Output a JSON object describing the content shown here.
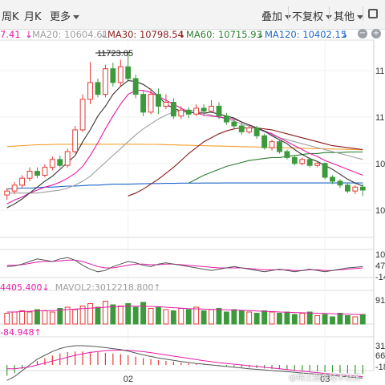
{
  "toolbar": {
    "period_week": "周K",
    "period_month": "月K",
    "more": "更多",
    "overlay": "叠加",
    "adjust": "不复权",
    "other": "其他"
  },
  "ma_legend": {
    "ma5_value": "7.41",
    "ma20_label": "MA20: 10604.61",
    "ma30_label": "MA30: 10798.54",
    "ma60_label": "MA60: 10715.93",
    "ma120_label": "MA120: 10402.15",
    "minus_icon": "minus-circle-icon",
    "plus_icon": "plus-circle-icon"
  },
  "colors": {
    "up": "#e53935",
    "down": "#3c9a3c",
    "ma5": "#333333",
    "ma10": "#e61aa8",
    "ma20": "#9e9e9e",
    "ma30": "#8b1a1a",
    "ma60": "#2e7d32",
    "ma120": "#1e66c8",
    "ma250": "#f0a030"
  },
  "chart_data": {
    "type": "candlestick",
    "high_annotation": "11723.05",
    "price_axis_ticks": [
      "11",
      "11",
      "10",
      "10"
    ],
    "x_ticks": [
      {
        "label": "02",
        "index": 16
      },
      {
        "label": "03",
        "index": 42
      }
    ],
    "ylim": [
      9850,
      11850
    ],
    "candles": [
      [
        10280,
        10320,
        10230,
        10350
      ],
      [
        10320,
        10380,
        10290,
        10410
      ],
      [
        10380,
        10450,
        10350,
        10480
      ],
      [
        10450,
        10520,
        10420,
        10560
      ],
      [
        10520,
        10480,
        10450,
        10560
      ],
      [
        10480,
        10560,
        10460,
        10590
      ],
      [
        10560,
        10640,
        10530,
        10670
      ],
      [
        10640,
        10580,
        10560,
        10680
      ],
      [
        10580,
        10720,
        10560,
        10750
      ],
      [
        10720,
        10940,
        10700,
        10980
      ],
      [
        10940,
        11250,
        10920,
        11300
      ],
      [
        11250,
        11420,
        11200,
        11630
      ],
      [
        11420,
        11300,
        11270,
        11460
      ],
      [
        11300,
        11560,
        11270,
        11600
      ],
      [
        11560,
        11420,
        11380,
        11620
      ],
      [
        11420,
        11580,
        11380,
        11650
      ],
      [
        11580,
        11460,
        11440,
        11723
      ],
      [
        11460,
        11300,
        11260,
        11500
      ],
      [
        11300,
        11120,
        11080,
        11340
      ],
      [
        11120,
        11300,
        11100,
        11360
      ],
      [
        11300,
        11180,
        11100,
        11360
      ],
      [
        11180,
        11220,
        11150,
        11300
      ],
      [
        11220,
        11080,
        11050,
        11260
      ],
      [
        11080,
        11140,
        11050,
        11180
      ],
      [
        11140,
        11100,
        11060,
        11170
      ],
      [
        11100,
        11160,
        11080,
        11200
      ],
      [
        11160,
        11130,
        11080,
        11200
      ],
      [
        11130,
        11180,
        11110,
        11240
      ],
      [
        11180,
        11080,
        11050,
        11220
      ],
      [
        11080,
        11020,
        10990,
        11110
      ],
      [
        11020,
        10980,
        10950,
        11060
      ],
      [
        10980,
        10920,
        10890,
        11010
      ],
      [
        10920,
        10960,
        10900,
        10990
      ],
      [
        10960,
        10880,
        10850,
        10980
      ],
      [
        10880,
        10760,
        10740,
        10900
      ],
      [
        10760,
        10820,
        10730,
        10840
      ],
      [
        10820,
        10720,
        10700,
        10840
      ],
      [
        10720,
        10660,
        10640,
        10740
      ],
      [
        10660,
        10600,
        10580,
        10680
      ],
      [
        10600,
        10640,
        10580,
        10660
      ],
      [
        10640,
        10580,
        10560,
        10660
      ],
      [
        10580,
        10600,
        10560,
        10620
      ],
      [
        10600,
        10460,
        10440,
        10610
      ],
      [
        10460,
        10420,
        10390,
        10480
      ],
      [
        10420,
        10380,
        10350,
        10440
      ],
      [
        10380,
        10320,
        10300,
        10400
      ],
      [
        10320,
        10360,
        10290,
        10380
      ],
      [
        10360,
        10330,
        10270,
        10390
      ]
    ],
    "ma_lines": {
      "ma5": [
        10150,
        10190,
        10240,
        10300,
        10360,
        10420,
        10470,
        10540,
        10610,
        10680,
        10820,
        10940,
        11080,
        11180,
        11300,
        11380,
        11440,
        11430,
        11400,
        11350,
        11280,
        11200,
        11160,
        11130,
        11120,
        11110,
        11110,
        11120,
        11100,
        11080,
        11060,
        11020,
        10990,
        10960,
        10930,
        10880,
        10840,
        10800,
        10740,
        10690,
        10650,
        10620,
        10580,
        10540,
        10490,
        10440,
        10400,
        10370
      ],
      "ma10": [
        10190,
        10230,
        10260,
        10300,
        10330,
        10360,
        10380,
        10410,
        10450,
        10500,
        10570,
        10680,
        10810,
        10950,
        11080,
        11200,
        11300,
        11340,
        11340,
        11320,
        11280,
        11240,
        11200,
        11160,
        11120,
        11110,
        11090,
        11080,
        11070,
        11060,
        11050,
        11020,
        10990,
        10960,
        10930,
        10900,
        10860,
        10820,
        10780,
        10740,
        10700,
        10670,
        10630,
        10600,
        10570,
        10540,
        10510,
        10480
      ],
      "ma20": [
        10300,
        10300,
        10300,
        10300,
        10300,
        10310,
        10320,
        10330,
        10350,
        10380,
        10420,
        10470,
        10540,
        10610,
        10680,
        10750,
        10820,
        10890,
        10950,
        11000,
        11050,
        11090,
        11120,
        11140,
        11140,
        11130,
        11110,
        11090,
        11070,
        11050,
        11030,
        11000,
        10980,
        10950,
        10920,
        10890,
        10860,
        10840,
        10820,
        10800,
        10780,
        10760,
        10740,
        10720,
        10700,
        10680,
        10660,
        10640
      ],
      "ma30": [
        null,
        null,
        null,
        null,
        null,
        null,
        null,
        null,
        null,
        null,
        null,
        null,
        null,
        null,
        null,
        null,
        10270,
        10300,
        10340,
        10390,
        10440,
        10500,
        10560,
        10630,
        10700,
        10760,
        10820,
        10860,
        10900,
        10930,
        10950,
        10960,
        10960,
        10960,
        10950,
        10940,
        10920,
        10900,
        10880,
        10860,
        10840,
        10820,
        10800,
        10780,
        10770,
        10760,
        10750,
        10740
      ],
      "ma60": [
        null,
        null,
        null,
        null,
        null,
        null,
        null,
        null,
        null,
        null,
        null,
        null,
        null,
        null,
        null,
        null,
        null,
        null,
        null,
        null,
        null,
        null,
        null,
        null,
        10400,
        10440,
        10480,
        10510,
        10540,
        10570,
        10590,
        10610,
        10630,
        10640,
        10650,
        10660,
        10660,
        10670,
        10680,
        10690,
        10700,
        10700,
        10710,
        10710,
        10710,
        10715,
        10716,
        10716
      ],
      "ma120": [
        10340,
        10345,
        10350,
        10350,
        10355,
        10360,
        10360,
        10365,
        10370,
        10370,
        10375,
        10380,
        10380,
        10385,
        10390,
        10390,
        10390,
        10392,
        10394,
        10396,
        10396,
        10398,
        10398,
        10400,
        10400,
        10400,
        10401,
        10401,
        10401,
        10402,
        10402,
        10402,
        10402,
        10402,
        10402,
        10402,
        10402,
        10402,
        10402,
        10402,
        10402,
        10402,
        10402,
        10402,
        10402,
        10402,
        10402,
        10402
      ],
      "ma250": [
        10770,
        10775,
        10780,
        10785,
        10790,
        10790,
        10792,
        10794,
        10794,
        10795,
        10795,
        10795,
        10795,
        10795,
        10795,
        10795,
        10795,
        10795,
        10794,
        10793,
        10792,
        10790,
        10788,
        10786,
        10784,
        10782,
        10780,
        10778,
        10776,
        10774,
        10772,
        10770,
        10768,
        10766,
        10764,
        10762,
        10760,
        10758,
        10756,
        10754,
        10752,
        10750,
        10748,
        10746,
        10744,
        10742,
        10740,
        10738
      ]
    },
    "macd": {
      "axis_ticks": [
        "10",
        "47",
        "-14"
      ],
      "dif": [
        0.1,
        0.15,
        0.3,
        0.5,
        0.7,
        0.6,
        0.5,
        0.7,
        0.8,
        0.6,
        0.2,
        -0.1,
        -0.3,
        -0.2,
        0.1,
        0.3,
        0.5,
        0.4,
        0.2,
        0.1,
        0.3,
        0.4,
        0.3,
        0.2,
        0.1,
        0.0,
        -0.1,
        -0.2,
        -0.1,
        0.0,
        0.1,
        0.0,
        -0.1,
        -0.2,
        -0.3,
        -0.2,
        -0.1,
        -0.2,
        -0.3,
        -0.2,
        -0.1,
        -0.2,
        -0.3,
        -0.2,
        -0.1,
        0.0,
        0.05,
        0.1
      ],
      "dea": [
        0.2,
        0.2,
        0.25,
        0.35,
        0.45,
        0.5,
        0.5,
        0.55,
        0.6,
        0.6,
        0.5,
        0.3,
        0.1,
        0.0,
        0.0,
        0.1,
        0.2,
        0.3,
        0.3,
        0.25,
        0.25,
        0.3,
        0.3,
        0.25,
        0.2,
        0.15,
        0.1,
        0.05,
        0.0,
        0.0,
        0.0,
        0.0,
        -0.05,
        -0.1,
        -0.15,
        -0.15,
        -0.15,
        -0.15,
        -0.2,
        -0.2,
        -0.15,
        -0.15,
        -0.2,
        -0.2,
        -0.15,
        -0.1,
        -0.05,
        0.0
      ]
    },
    "volume": {
      "label_left": "4405.400↓",
      "mavol2_label": "MAVOL2:3012218.800↑",
      "axis_tick": "91",
      "values": [
        0.45,
        0.5,
        0.55,
        0.5,
        0.6,
        0.55,
        0.5,
        0.65,
        0.7,
        0.6,
        0.75,
        0.85,
        0.7,
        0.95,
        0.8,
        0.75,
        0.85,
        0.7,
        0.9,
        0.65,
        0.7,
        0.6,
        0.55,
        0.65,
        0.6,
        0.7,
        0.55,
        0.6,
        0.65,
        0.5,
        0.6,
        0.55,
        0.5,
        0.45,
        0.55,
        0.5,
        0.45,
        0.5,
        0.4,
        0.45,
        0.5,
        0.35,
        0.4,
        0.3,
        0.45,
        0.35,
        0.3,
        0.4
      ],
      "mavol": [
        0.5,
        0.5,
        0.52,
        0.53,
        0.55,
        0.56,
        0.56,
        0.58,
        0.6,
        0.62,
        0.64,
        0.66,
        0.68,
        0.7,
        0.72,
        0.73,
        0.74,
        0.74,
        0.74,
        0.73,
        0.72,
        0.7,
        0.68,
        0.66,
        0.64,
        0.63,
        0.62,
        0.61,
        0.6,
        0.59,
        0.58,
        0.57,
        0.56,
        0.54,
        0.53,
        0.52,
        0.5,
        0.49,
        0.48,
        0.47,
        0.46,
        0.45,
        0.44,
        0.43,
        0.42,
        0.41,
        0.4,
        0.4
      ]
    },
    "kdj": {
      "label_left": "-84.948↑",
      "axis_ticks": [
        "31",
        "66",
        "-18"
      ],
      "dif": [
        -0.8,
        -0.6,
        -0.3,
        0.0,
        0.3,
        0.5,
        0.7,
        0.85,
        0.95,
        1.0,
        1.0,
        0.98,
        0.95,
        0.9,
        0.85,
        0.8,
        0.72,
        0.62,
        0.52,
        0.44,
        0.36,
        0.3,
        0.24,
        0.18,
        0.13,
        0.08,
        0.04,
        0.0,
        -0.04,
        -0.08,
        -0.12,
        -0.16,
        -0.2,
        -0.23,
        -0.26,
        -0.29,
        -0.32,
        -0.35,
        -0.38,
        -0.42,
        -0.45,
        -0.48,
        -0.52,
        -0.55,
        -0.58,
        -0.62,
        -0.65,
        -0.68
      ],
      "dea": [
        -0.2,
        -0.2,
        -0.15,
        -0.1,
        0.0,
        0.1,
        0.2,
        0.3,
        0.4,
        0.5,
        0.58,
        0.65,
        0.7,
        0.74,
        0.76,
        0.77,
        0.76,
        0.73,
        0.69,
        0.64,
        0.58,
        0.52,
        0.46,
        0.4,
        0.34,
        0.28,
        0.22,
        0.17,
        0.12,
        0.08,
        0.04,
        0.0,
        -0.04,
        -0.08,
        -0.12,
        -0.16,
        -0.2,
        -0.24,
        -0.28,
        -0.32,
        -0.36,
        -0.4,
        -0.44,
        -0.48,
        -0.52,
        -0.55,
        -0.58,
        -0.61
      ]
    }
  }
}
